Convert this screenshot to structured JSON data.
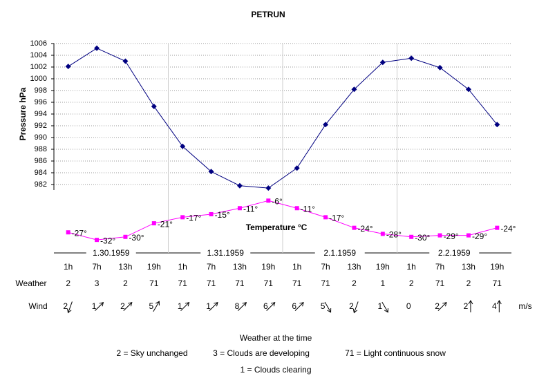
{
  "chart_data": {
    "type": "line",
    "title": "PETRUN",
    "y_label": "Pressure hPa",
    "categories": [
      "1h",
      "7h",
      "13h",
      "19h",
      "1h",
      "7h",
      "13h",
      "19h",
      "1h",
      "7h",
      "13h",
      "19h",
      "1h",
      "7h",
      "13h",
      "19h"
    ],
    "dates": [
      "1.30.1959",
      "1.31.1959",
      "2.1.1959",
      "2.2.1959"
    ],
    "ylim": [
      970,
      1006
    ],
    "yticks": [
      982,
      984,
      986,
      988,
      990,
      992,
      994,
      996,
      998,
      1000,
      1002,
      1004,
      1006
    ],
    "grid": true,
    "y2lim": [
      -42,
      98
    ],
    "series": [
      {
        "name": "Pressure hPa",
        "color": "#000080",
        "values": [
          1002.1,
          1005.2,
          1003,
          995.3,
          988.5,
          984.2,
          981.8,
          981.4,
          984.8,
          992.2,
          998.2,
          1002.8,
          1003.5,
          1001.9,
          998.2,
          992.2
        ]
      },
      {
        "name": "Temperature °C",
        "color": "#ff00ff",
        "axis": "y2",
        "values": [
          -27,
          -32,
          -30,
          -21,
          -17,
          -15,
          -11,
          -6,
          -11,
          -17,
          -24,
          -28,
          -30,
          -29,
          -29,
          -24
        ],
        "value_labels": [
          "-27°",
          "-32°",
          "-30°",
          "-21°",
          "-17°",
          "-15°",
          "-11°",
          "-6°",
          "-11°",
          "-17°",
          "-24°",
          "-28°",
          "-30°",
          "-29°",
          "-29°",
          "-24°"
        ]
      }
    ],
    "weather": {
      "label": "Weather",
      "values": [
        2,
        3,
        2,
        71,
        71,
        71,
        71,
        71,
        71,
        71,
        2,
        1,
        2,
        71,
        2,
        71
      ]
    },
    "wind": {
      "label": "Wind",
      "unit": "m/s",
      "values": [
        2,
        1,
        2,
        5,
        1,
        1,
        8,
        6,
        6,
        5,
        2,
        1,
        0,
        2,
        2,
        4
      ],
      "direction": [
        200,
        45,
        45,
        30,
        45,
        45,
        45,
        45,
        45,
        150,
        200,
        150,
        null,
        45,
        0,
        0
      ]
    },
    "legend": {
      "title": "Weather at the time",
      "items": [
        "2 = Sky unchanged",
        "3 = Clouds are developing",
        "71 = Light continuous snow",
        "1 = Clouds clearing"
      ]
    }
  }
}
